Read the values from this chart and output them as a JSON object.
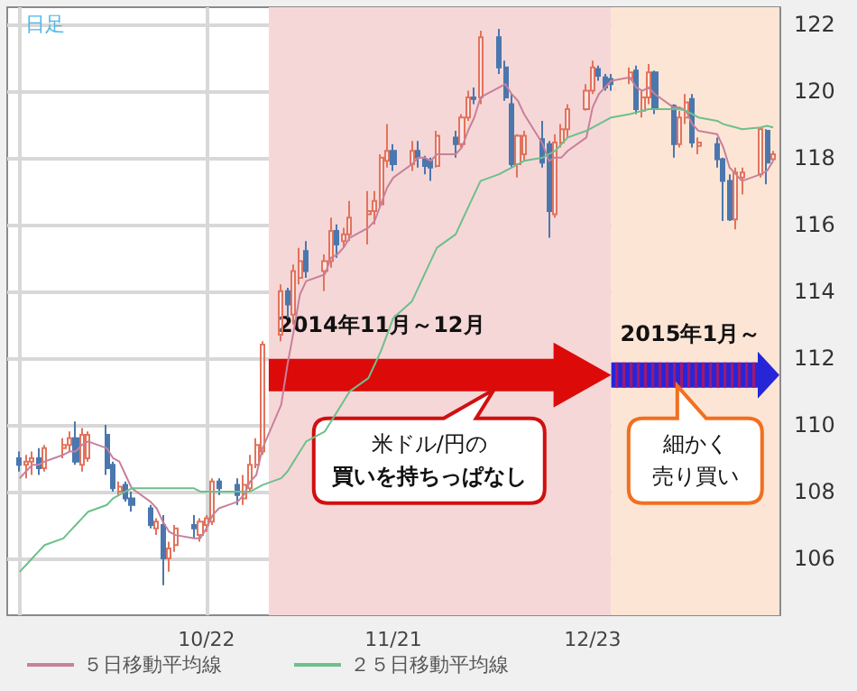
{
  "chart_data": {
    "type": "candlestick",
    "x": [
      "2014-09-22",
      "2014-09-23",
      "2014-09-24",
      "2014-09-25",
      "2014-09-26",
      "2014-09-29",
      "2014-09-30",
      "2014-10-01",
      "2014-10-02",
      "2014-10-03",
      "2014-10-06",
      "2014-10-07",
      "2014-10-08",
      "2014-10-09",
      "2014-10-10",
      "2014-10-13",
      "2014-10-14",
      "2014-10-15",
      "2014-10-16",
      "2014-10-17",
      "2014-10-20",
      "2014-10-21",
      "2014-10-22",
      "2014-10-23",
      "2014-10-24",
      "2014-10-27",
      "2014-10-28",
      "2014-10-29",
      "2014-10-30",
      "2014-10-31",
      "2014-11-03",
      "2014-11-04",
      "2014-11-05",
      "2014-11-06",
      "2014-11-07",
      "2014-11-10",
      "2014-11-11",
      "2014-11-12",
      "2014-11-13",
      "2014-11-14",
      "2014-11-17",
      "2014-11-18",
      "2014-11-19",
      "2014-11-20",
      "2014-11-21",
      "2014-11-24",
      "2014-11-25",
      "2014-11-26",
      "2014-11-27",
      "2014-11-28",
      "2014-12-01",
      "2014-12-02",
      "2014-12-03",
      "2014-12-04",
      "2014-12-05",
      "2014-12-08",
      "2014-12-09",
      "2014-12-10",
      "2014-12-11",
      "2014-12-12",
      "2014-12-15",
      "2014-12-16",
      "2014-12-17",
      "2014-12-18",
      "2014-12-19",
      "2014-12-22",
      "2014-12-23",
      "2014-12-24",
      "2014-12-25",
      "2014-12-26",
      "2014-12-29",
      "2014-12-30",
      "2014-12-31",
      "2015-01-01",
      "2015-01-02",
      "2015-01-05",
      "2015-01-06",
      "2015-01-07",
      "2015-01-08",
      "2015-01-09",
      "2015-01-12",
      "2015-01-13",
      "2015-01-14",
      "2015-01-15",
      "2015-01-16",
      "2015-01-19",
      "2015-01-20",
      "2015-01-21"
    ],
    "ohlc": [
      [
        109.0,
        109.2,
        108.6,
        108.8
      ],
      [
        108.8,
        109.1,
        108.4,
        108.9
      ],
      [
        108.9,
        109.2,
        108.5,
        109.0
      ],
      [
        109.0,
        109.3,
        108.5,
        108.7
      ],
      [
        108.7,
        109.4,
        108.6,
        109.3
      ],
      [
        109.3,
        109.6,
        109.0,
        109.4
      ],
      [
        109.4,
        109.8,
        109.2,
        109.6
      ],
      [
        109.6,
        110.1,
        108.8,
        108.9
      ],
      [
        108.8,
        109.9,
        108.6,
        109.7
      ],
      [
        109.0,
        109.8,
        108.9,
        109.7
      ],
      [
        109.7,
        110.0,
        108.5,
        108.7
      ],
      [
        108.8,
        108.9,
        108.0,
        108.1
      ],
      [
        108.0,
        108.3,
        107.9,
        108.15
      ],
      [
        108.2,
        108.3,
        107.7,
        107.8
      ],
      [
        107.8,
        108.0,
        107.4,
        107.6
      ],
      [
        107.5,
        107.6,
        106.9,
        107.0
      ],
      [
        106.9,
        107.2,
        106.7,
        107.1
      ],
      [
        107.0,
        107.3,
        105.2,
        106.0
      ],
      [
        106.0,
        106.5,
        105.6,
        106.3
      ],
      [
        106.4,
        107.0,
        106.2,
        106.9
      ],
      [
        107.0,
        107.3,
        106.6,
        106.9
      ],
      [
        106.7,
        107.2,
        106.5,
        107.1
      ],
      [
        107.0,
        107.3,
        106.8,
        107.2
      ],
      [
        107.1,
        108.4,
        107.0,
        108.3
      ],
      [
        108.3,
        108.4,
        107.9,
        108.1
      ],
      [
        108.2,
        108.4,
        107.6,
        107.9
      ],
      [
        107.8,
        108.5,
        107.6,
        108.2
      ],
      [
        108.1,
        109.1,
        108.0,
        108.8
      ],
      [
        108.8,
        109.6,
        108.7,
        109.4
      ],
      [
        109.2,
        112.5,
        109.1,
        112.4
      ],
      [
        112.7,
        114.2,
        112.5,
        114.0
      ],
      [
        114.0,
        114.1,
        113.2,
        113.6
      ],
      [
        113.3,
        114.8,
        113.0,
        114.6
      ],
      [
        114.4,
        115.3,
        114.2,
        114.9
      ],
      [
        115.2,
        115.5,
        114.4,
        114.6
      ],
      [
        114.6,
        115.1,
        114.0,
        114.9
      ],
      [
        114.9,
        116.2,
        114.7,
        115.8
      ],
      [
        115.8,
        116.0,
        115.0,
        115.4
      ],
      [
        115.5,
        115.9,
        115.3,
        115.7
      ],
      [
        115.7,
        116.7,
        115.5,
        116.2
      ],
      [
        116.3,
        117.0,
        115.4,
        116.4
      ],
      [
        116.4,
        117.0,
        116.0,
        116.7
      ],
      [
        116.6,
        118.1,
        116.5,
        118.0
      ],
      [
        117.9,
        119.0,
        117.7,
        118.2
      ],
      [
        118.2,
        118.4,
        117.6,
        117.8
      ],
      [
        117.8,
        118.5,
        117.6,
        118.2
      ],
      [
        118.2,
        118.5,
        117.7,
        118.0
      ],
      [
        117.95,
        118.05,
        117.5,
        117.75
      ],
      [
        117.9,
        118.0,
        117.3,
        117.7
      ],
      [
        117.75,
        118.8,
        117.7,
        118.65
      ],
      [
        118.6,
        118.8,
        118.0,
        118.4
      ],
      [
        118.4,
        119.3,
        118.3,
        119.2
      ],
      [
        119.2,
        120.0,
        119.1,
        119.8
      ],
      [
        119.8,
        120.1,
        119.6,
        119.75
      ],
      [
        119.8,
        121.8,
        119.6,
        121.6
      ],
      [
        121.6,
        121.85,
        120.5,
        120.7
      ],
      [
        120.7,
        120.9,
        119.7,
        119.8
      ],
      [
        119.6,
        119.9,
        117.7,
        117.8
      ],
      [
        117.8,
        118.7,
        117.4,
        118.65
      ],
      [
        118.1,
        118.8,
        117.9,
        118.65
      ],
      [
        118.55,
        119.1,
        117.7,
        117.85
      ],
      [
        118.4,
        118.5,
        115.6,
        116.4
      ],
      [
        116.3,
        118.7,
        116.2,
        118.45
      ],
      [
        118.45,
        119.0,
        118.3,
        118.85
      ],
      [
        118.85,
        119.6,
        118.6,
        119.45
      ],
      [
        119.45,
        120.2,
        119.4,
        120.0
      ],
      [
        120.0,
        120.9,
        119.9,
        120.7
      ],
      [
        120.65,
        120.75,
        120.3,
        120.45
      ],
      [
        120.4,
        120.5,
        120.0,
        120.1
      ],
      [
        120.35,
        120.5,
        120.0,
        120.2
      ],
      [
        120.35,
        120.7,
        120.2,
        120.55
      ],
      [
        120.6,
        120.75,
        119.3,
        119.45
      ],
      [
        119.4,
        120.0,
        119.2,
        119.8
      ],
      [
        119.8,
        120.8,
        119.6,
        120.55
      ],
      [
        120.55,
        120.6,
        119.3,
        119.45
      ],
      [
        119.55,
        119.6,
        118.0,
        118.4
      ],
      [
        118.4,
        119.4,
        118.3,
        119.2
      ],
      [
        119.2,
        119.9,
        119.0,
        119.65
      ],
      [
        119.75,
        119.9,
        118.3,
        118.45
      ],
      [
        118.35,
        118.6,
        118.1,
        118.45
      ],
      [
        118.4,
        118.6,
        117.7,
        117.95
      ],
      [
        117.95,
        118.0,
        116.1,
        117.3
      ],
      [
        117.3,
        117.5,
        116.1,
        116.15
      ],
      [
        116.15,
        117.7,
        115.85,
        117.55
      ],
      [
        117.4,
        117.7,
        116.9,
        117.55
      ],
      [
        117.5,
        118.9,
        117.4,
        118.85
      ],
      [
        118.8,
        118.85,
        117.2,
        117.85
      ],
      [
        117.95,
        118.2,
        117.9,
        118.1
      ]
    ],
    "series": [
      {
        "name": "５日移動平均線",
        "type": "line",
        "color": "#c8809a",
        "values": [
          108.4,
          108.6,
          108.8,
          108.8,
          108.9,
          109.1,
          109.2,
          109.2,
          109.4,
          109.5,
          109.3,
          109.0,
          108.9,
          108.5,
          108.1,
          107.7,
          107.5,
          107.1,
          106.8,
          106.7,
          106.6,
          106.6,
          106.9,
          107.3,
          107.5,
          107.7,
          107.9,
          108.3,
          108.5,
          109.3,
          110.6,
          111.8,
          112.8,
          113.9,
          114.3,
          114.5,
          115.0,
          115.1,
          115.3,
          115.6,
          115.9,
          116.1,
          116.6,
          117.1,
          117.4,
          117.8,
          118.0,
          118.0,
          117.9,
          118.1,
          118.1,
          118.3,
          118.8,
          119.2,
          119.8,
          120.1,
          120.2,
          119.9,
          119.7,
          119.3,
          118.4,
          117.9,
          118.0,
          118.0,
          118.2,
          118.6,
          119.5,
          119.9,
          120.1,
          120.3,
          120.4,
          120.1,
          120.0,
          120.1,
          119.9,
          119.5,
          119.5,
          119.4,
          119.0,
          118.8,
          118.7,
          118.3,
          117.7,
          117.5,
          117.3,
          117.5,
          117.6,
          117.9
        ]
      },
      {
        "name": "２５日移動平均線",
        "type": "line",
        "color": "#6cc08c",
        "values": [
          105.6,
          105.8,
          106.0,
          106.2,
          106.4,
          106.6,
          106.8,
          107.0,
          107.2,
          107.4,
          107.6,
          107.8,
          107.9,
          108.0,
          108.1,
          108.1,
          108.1,
          108.1,
          108.1,
          108.1,
          108.1,
          108.0,
          108.0,
          108.0,
          108.0,
          108.0,
          108.0,
          108.0,
          108.1,
          108.2,
          108.4,
          108.6,
          108.9,
          109.2,
          109.5,
          109.8,
          110.1,
          110.4,
          110.7,
          111.0,
          111.4,
          111.8,
          112.2,
          112.7,
          113.2,
          113.7,
          114.1,
          114.5,
          114.9,
          115.3,
          115.7,
          116.1,
          116.5,
          116.9,
          117.3,
          117.5,
          117.6,
          117.7,
          117.8,
          117.9,
          118.0,
          118.1,
          118.2,
          118.4,
          118.6,
          118.8,
          118.9,
          119.0,
          119.1,
          119.2,
          119.3,
          119.35,
          119.4,
          119.45,
          119.45,
          119.45,
          119.45,
          119.4,
          119.3,
          119.2,
          119.1,
          119.0,
          118.95,
          118.9,
          118.85,
          118.9,
          118.95,
          118.9
        ]
      }
    ],
    "ylim": [
      104.3,
      122.5
    ],
    "yticks": [
      106,
      108,
      110,
      112,
      114,
      116,
      118,
      120,
      122
    ],
    "xticks": [
      {
        "value": "2014-09-22",
        "label": null
      },
      {
        "value": "2014-10-22",
        "label": "10/22"
      },
      {
        "value": "2014-11-21",
        "label": "11/21"
      },
      {
        "value": "2014-12-23",
        "label": "12/23"
      }
    ],
    "xlim": [
      "2014-09-20",
      "2015-01-22"
    ],
    "grid": true,
    "legend": "bottom",
    "marker": "none",
    "line_style": "solid",
    "bands": [
      {
        "axis": "x",
        "from": "2014-11-01",
        "to": "2014-12-26",
        "label": "2014年11月～12月",
        "color": "#f6d7d7"
      },
      {
        "axis": "x",
        "from": "2014-12-26",
        "to": "2015-01-22",
        "label": "2015年1月～",
        "color": "#fde5d6"
      }
    ],
    "annotations": [
      "日足",
      "米ドル/円の",
      "買いを持ちっぱなし",
      "細かく",
      "売り買い"
    ]
  }
}
